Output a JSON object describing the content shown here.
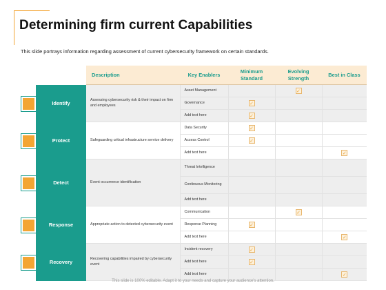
{
  "title": "Determining firm current Capabilities",
  "subtitle": "This slide portrays information regarding assessment of current cybersecurity framework on certain standards.",
  "footer": "This slide is 100% editable. Adapt it to your needs and capture your audience's attention.",
  "headers": {
    "description": "Description",
    "key_enablers": "Key Enablers",
    "minimum_standard": "Minimum Standard",
    "evolving_strength": "Evolving Strength",
    "best_in_class": "Best in Class"
  },
  "groups": [
    {
      "name": "Identify",
      "icon": "computer-monitor-icon",
      "description": "Assessing cybersecurity risk & their impact on firm and employees",
      "rows": [
        {
          "enabler": "Asset Management",
          "checks": [
            false,
            true,
            false
          ]
        },
        {
          "enabler": "Governance",
          "checks": [
            true,
            false,
            false
          ]
        },
        {
          "enabler": "Add text here",
          "checks": [
            true,
            false,
            false
          ]
        }
      ]
    },
    {
      "name": "Protect",
      "icon": "shield-icon",
      "description": "Safeguarding critical infrastructure service delivery",
      "rows": [
        {
          "enabler": "Data Security",
          "checks": [
            true,
            false,
            false
          ]
        },
        {
          "enabler": "Access Control",
          "checks": [
            true,
            false,
            false
          ]
        },
        {
          "enabler": "Add text here",
          "checks": [
            false,
            false,
            true
          ]
        }
      ]
    },
    {
      "name": "Detect",
      "icon": "target-gear-icon",
      "description": "Event occurrence identification",
      "rows": [
        {
          "enabler": "Threat Intelligence",
          "checks": [
            false,
            false,
            false
          ]
        },
        {
          "enabler": "Continuous Monitoring",
          "checks": [
            false,
            false,
            false
          ]
        },
        {
          "enabler": "Add text here",
          "checks": [
            false,
            false,
            false
          ]
        }
      ]
    },
    {
      "name": "Response",
      "icon": "document-list-icon",
      "description": "Appropriate action to detected cybersecurity event",
      "rows": [
        {
          "enabler": "Communication",
          "checks": [
            false,
            true,
            false
          ]
        },
        {
          "enabler": "Response Planning",
          "checks": [
            true,
            false,
            false
          ]
        },
        {
          "enabler": "Add text here",
          "checks": [
            false,
            false,
            true
          ]
        }
      ]
    },
    {
      "name": "Recovery",
      "icon": "laptop-recovery-icon",
      "description": "Recovering capabilities impaired by cybersecurity event",
      "rows": [
        {
          "enabler": "Incident recovery",
          "checks": [
            true,
            false,
            false
          ]
        },
        {
          "enabler": "Add text here",
          "checks": [
            true,
            false,
            false
          ]
        },
        {
          "enabler": "Add text here",
          "checks": [
            false,
            false,
            true
          ]
        }
      ]
    }
  ],
  "colors": {
    "teal": "#1a9c8d",
    "orange": "#f3a533",
    "header_bg": "#fcebd3",
    "shade": "#eeeeee"
  }
}
